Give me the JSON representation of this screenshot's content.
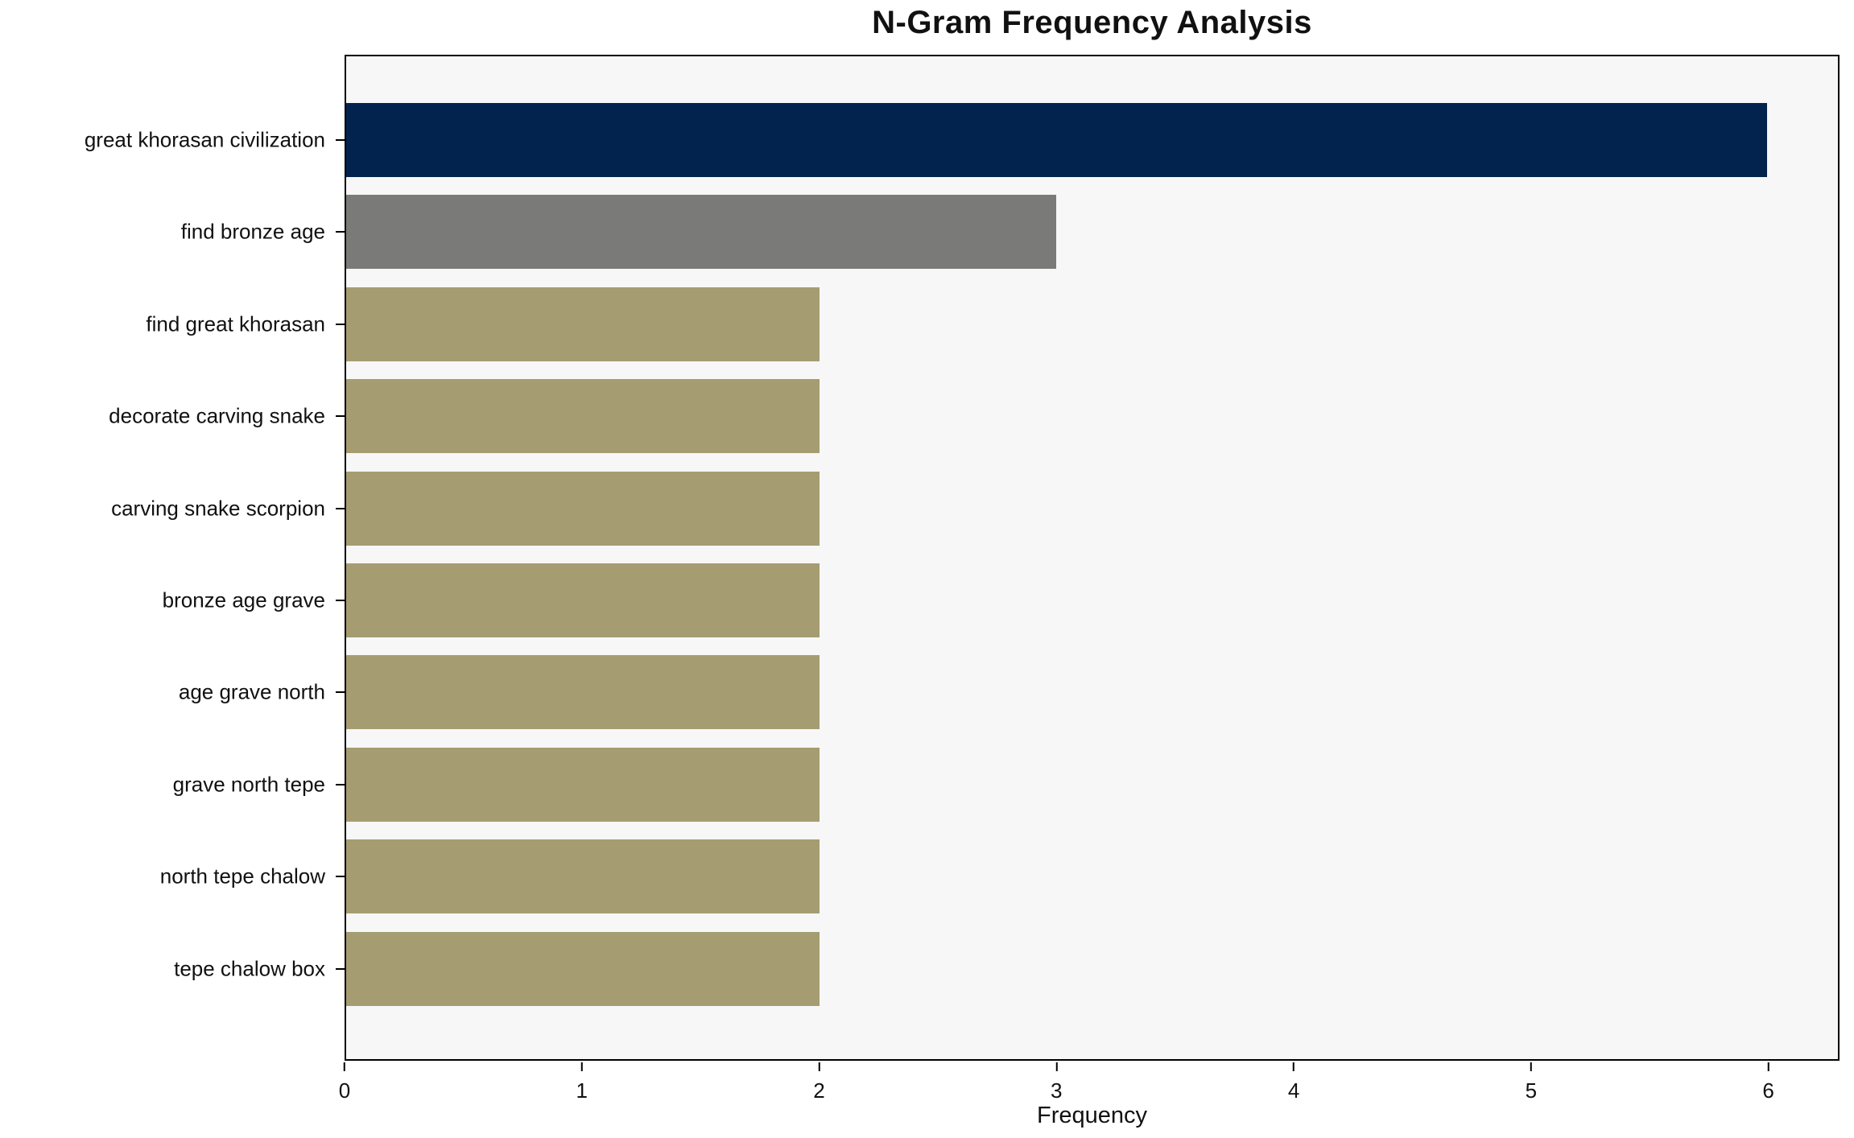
{
  "chart_data": {
    "type": "bar",
    "orientation": "horizontal",
    "title": "N-Gram Frequency Analysis",
    "xlabel": "Frequency",
    "ylabel": "",
    "categories": [
      "great khorasan civilization",
      "find bronze age",
      "find great khorasan",
      "decorate carving snake",
      "carving snake scorpion",
      "bronze age grave",
      "age grave north",
      "grave north tepe",
      "north tepe chalow",
      "tepe chalow box"
    ],
    "values": [
      6,
      3,
      2,
      2,
      2,
      2,
      2,
      2,
      2,
      2
    ],
    "bar_colors": [
      "#02234e",
      "#7a7a78",
      "#a59d71",
      "#a59d71",
      "#a59d71",
      "#a59d71",
      "#a59d71",
      "#a59d71",
      "#a59d71",
      "#a59d71"
    ],
    "x_ticks": [
      0,
      1,
      2,
      3,
      4,
      5,
      6
    ],
    "xlim": [
      0,
      6.3
    ],
    "grid": false,
    "legend_position": "none",
    "plot_background": "#f7f7f7",
    "axis_border_color": "#000000"
  }
}
